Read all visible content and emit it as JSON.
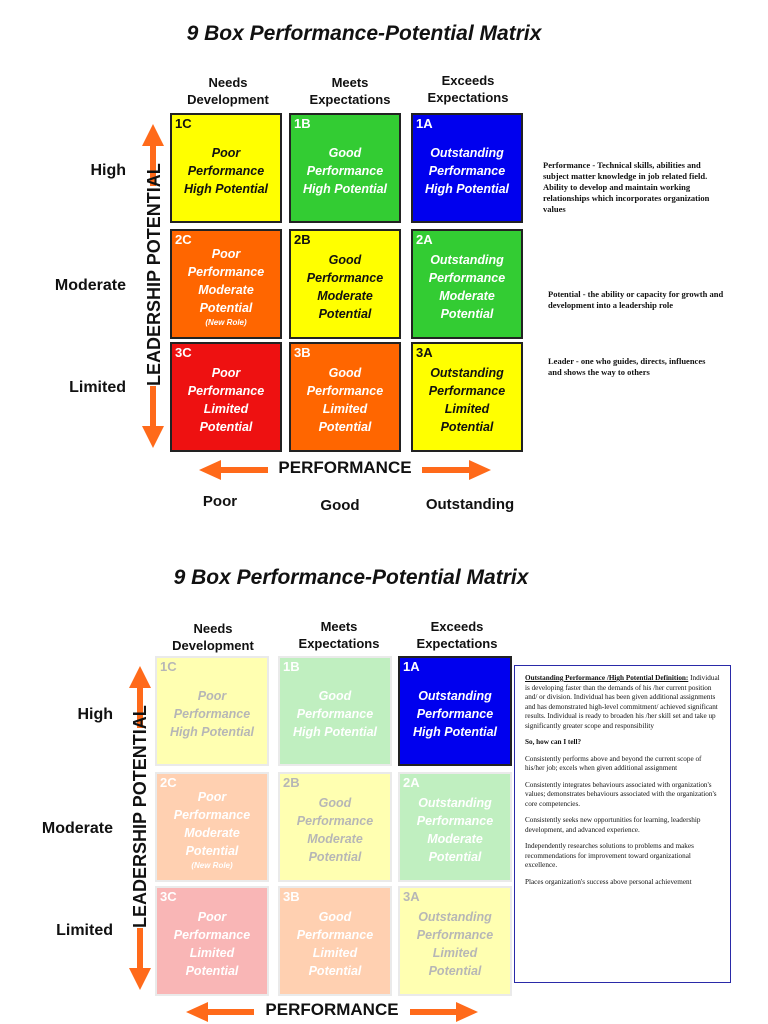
{
  "matrix1": {
    "title": "9 Box Performance-Potential Matrix",
    "columns": [
      "Needs Development",
      "Meets Expectations",
      "Exceeds Expectations"
    ],
    "rows": [
      "High",
      "Moderate",
      "Limited"
    ],
    "y_axis_label": "LEADERSHIP POTENTIAL",
    "x_axis_label": "PERFORMANCE",
    "perf_levels": [
      "Poor",
      "Good",
      "Outstanding"
    ],
    "boxes": [
      {
        "code": "1C",
        "lines": [
          "Poor",
          "Performance",
          "High Potential"
        ],
        "color": "#ffff00"
      },
      {
        "code": "1B",
        "lines": [
          "Good",
          "Performance",
          "High Potential"
        ],
        "color": "#33cc33"
      },
      {
        "code": "1A",
        "lines": [
          "Outstanding",
          "Performance",
          "High Potential"
        ],
        "color": "#0000ee"
      },
      {
        "code": "2C",
        "lines": [
          "Poor",
          "Performance",
          "Moderate",
          "Potential"
        ],
        "note": "(New Role)",
        "color": "#ff6600"
      },
      {
        "code": "2B",
        "lines": [
          "Good",
          "Performance",
          "Moderate",
          "Potential"
        ],
        "color": "#ffff00"
      },
      {
        "code": "2A",
        "lines": [
          "Outstanding",
          "Performance",
          "Moderate",
          "Potential"
        ],
        "color": "#33cc33"
      },
      {
        "code": "3C",
        "lines": [
          "Poor",
          "Performance",
          "Limited",
          "Potential"
        ],
        "color": "#ee1111"
      },
      {
        "code": "3B",
        "lines": [
          "Good",
          "Performance",
          "Limited",
          "Potential"
        ],
        "color": "#ff6600"
      },
      {
        "code": "3A",
        "lines": [
          "Outstanding",
          "Performance",
          "Limited",
          "Potential"
        ],
        "color": "#ffff00"
      }
    ],
    "definitions": {
      "performance": "Performance - Technical skills, abilities and subject matter knowledge in job related field. Ability to develop and maintain working relationships which incorporates organization values",
      "potential": "Potential - the ability or capacity for growth and development into a leadership role",
      "leader": "Leader - one who guides, directs, influences and shows the way to others"
    }
  },
  "matrix2": {
    "title": "9 Box Performance-Potential Matrix",
    "columns": [
      "Needs Development",
      "Meets Expectations",
      "Exceeds Expectations"
    ],
    "rows": [
      "High",
      "Moderate",
      "Limited"
    ],
    "y_axis_label": "LEADERSHIP POTENTIAL",
    "x_axis_label": "PERFORMANCE",
    "info": {
      "heading": "Outstanding Performance /High Potential Definition:",
      "definition": "Individual is developing faster than the demands of his /her current position and/ or division. Individual has been given additional assignments and has demonstrated high-level commitment/ achieved significant results. Individual is ready to broaden his /her skill set and take up significantly greater scope and responsibility",
      "question": "So, how can I tell?",
      "points": [
        "Consistently performs above and beyond the current scope of his/her job; excels when given additional assignment",
        "Consistently integrates behaviours associated with organization's values; demonstrates behaviours associated with the organization's core competencies.",
        "Consistently seeks new opportunities for learning, leadership development, and advanced experience.",
        "Independently researches solutions to problems and makes recommendations for improvement toward organizational excellence.",
        "Places organization's success above personal achievement"
      ]
    }
  },
  "colors": {
    "arrow": "#ff6a1a",
    "info_border": "#2a2aa8"
  }
}
